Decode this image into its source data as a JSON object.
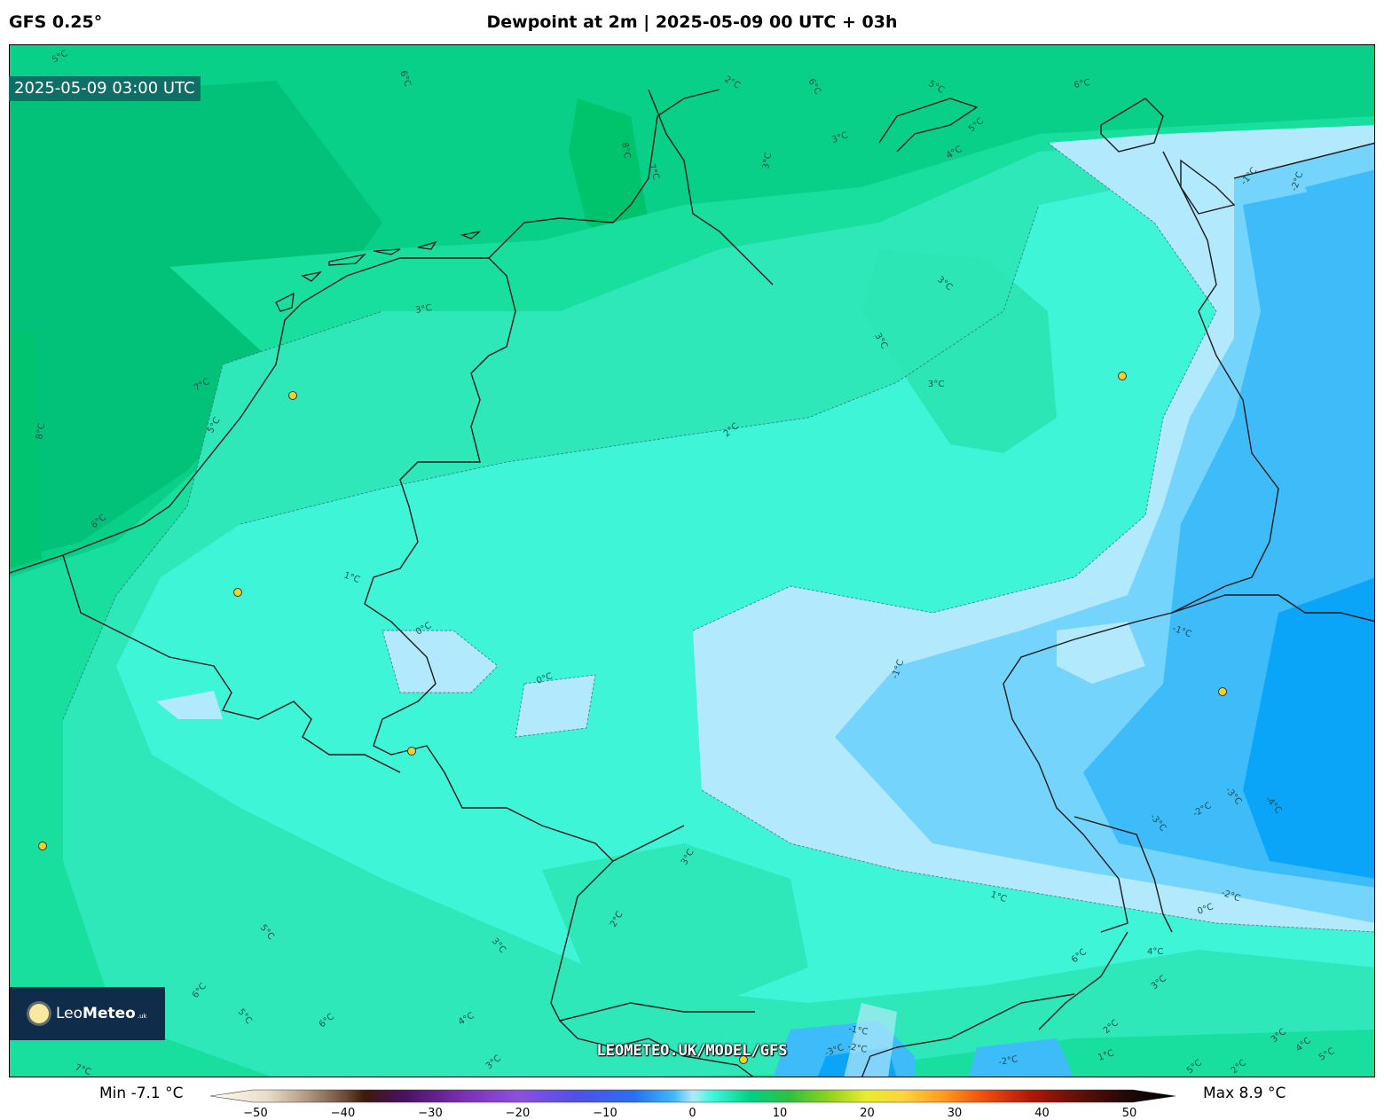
{
  "header": {
    "model": "GFS 0.25°",
    "title": "Dewpoint at 2m | 2025-05-09 00 UTC + 03h"
  },
  "map": {
    "valid_time": "2025-05-09 03:00 UTC",
    "watermark": "LEOMETEO.UK/MODEL/GFS",
    "logo": {
      "brand_light": "Leo",
      "brand_bold": "Meteo",
      "suffix": ".uk"
    },
    "contour_labels": [
      "5°C",
      "6°C",
      "2°C",
      "6°C",
      "5°C",
      "8°C",
      "7°C",
      "3°C",
      "3°C",
      "4°C",
      "5°C",
      "6°C",
      "-1°C",
      "-2°C",
      "3°C",
      "3°C",
      "3°C",
      "2°C",
      "3°C",
      "7°C",
      "5°C",
      "8°C",
      "6°C",
      "1°C",
      "0°C",
      "0°C",
      "-1°C",
      "-1°C",
      "-2°C",
      "-3°C",
      "-4°C",
      "-3°C",
      "3°C",
      "2°C",
      "3°C",
      "5°C",
      "6°C",
      "4°C",
      "5°C",
      "6°C",
      "7°C",
      "1°C",
      "0°C",
      "-2°C",
      "4°C",
      "6°C",
      "3°C",
      "2°C",
      "1°C",
      "3°C",
      "4°C",
      "5°C",
      "-1°C",
      "-2°C",
      "-3°C",
      "-2°C",
      "5°C",
      "2°C",
      "3°C"
    ],
    "colors": {
      "warm_green": "#02cf82",
      "mid_green": "#12dc96",
      "light_green": "#2ee8ba",
      "aqua": "#40f6d9",
      "pale_blue": "#b3e9fc",
      "light_blue": "#74d4fb",
      "mid_blue": "#3ebcf9",
      "deep_blue": "#0aa4f8"
    }
  },
  "legend": {
    "min_label": "Min -7.1 °C",
    "max_label": "Max 8.9 °C",
    "ticks": [
      "−50",
      "−40",
      "−30",
      "−20",
      "−10",
      "0",
      "10",
      "20",
      "30",
      "40",
      "50"
    ],
    "range": [
      -50,
      50
    ]
  }
}
